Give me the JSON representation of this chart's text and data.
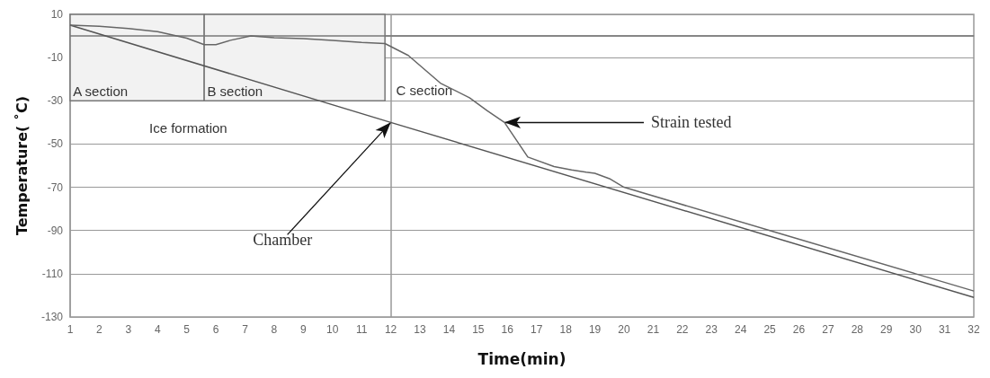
{
  "chart_data": {
    "type": "line",
    "xlabel": "Time(min)",
    "ylabel": "Temperature( ˚C)",
    "xlim": [
      1,
      32
    ],
    "xticks": [
      1,
      2,
      3,
      4,
      5,
      6,
      7,
      8,
      9,
      10,
      11,
      12,
      13,
      14,
      15,
      16,
      17,
      18,
      19,
      20,
      21,
      22,
      23,
      24,
      25,
      26,
      27,
      28,
      29,
      30,
      31,
      32
    ],
    "ylim": [
      -130,
      10
    ],
    "yticks": [
      10,
      -10,
      -30,
      -50,
      -70,
      -90,
      -110,
      -130
    ],
    "grid": "y",
    "marker": "none",
    "line_style": "solid",
    "series": [
      {
        "color": "#555555",
        "x": [
          1,
          12,
          32
        ],
        "values": [
          5,
          -40,
          -121
        ]
      },
      {
        "color": "#666666",
        "x": [
          1,
          2,
          3,
          4,
          5,
          5.6,
          6,
          6.5,
          7.2,
          8,
          9,
          10,
          11,
          11.8,
          12.6,
          13.7,
          14.7,
          15.3,
          15.9,
          16.7,
          17.6,
          18.2,
          18.7,
          19,
          19.5,
          20,
          25,
          30,
          32
        ],
        "values": [
          5,
          4.5,
          3.5,
          2,
          -1,
          -4,
          -4,
          -2,
          0,
          -0.8,
          -1.2,
          -2,
          -3,
          -3.5,
          -9,
          -21.8,
          -28.6,
          -34.5,
          -40,
          -56,
          -60.4,
          -62,
          -63,
          -63.5,
          -66,
          -70,
          -90,
          -110,
          -118
        ]
      }
    ],
    "bands": [
      {
        "axis": "x",
        "from": 1,
        "to": 5.6,
        "label": "A section",
        "color": "#f2f2f2"
      },
      {
        "axis": "x",
        "from": 5.6,
        "to": 11.8,
        "label": "B section",
        "color": "#f2f2f2"
      }
    ],
    "ref_lines": [
      {
        "axis": "x",
        "value": 12,
        "label": "C section",
        "color": "#999999"
      },
      {
        "axis": "y",
        "value": 0,
        "color": "#777777"
      }
    ],
    "annotations": [
      "Ice formation",
      {
        "text": "Strain tested",
        "x": 15.9,
        "y": -40
      },
      {
        "text": "Chamber",
        "x": 12,
        "y": -40
      }
    ]
  }
}
